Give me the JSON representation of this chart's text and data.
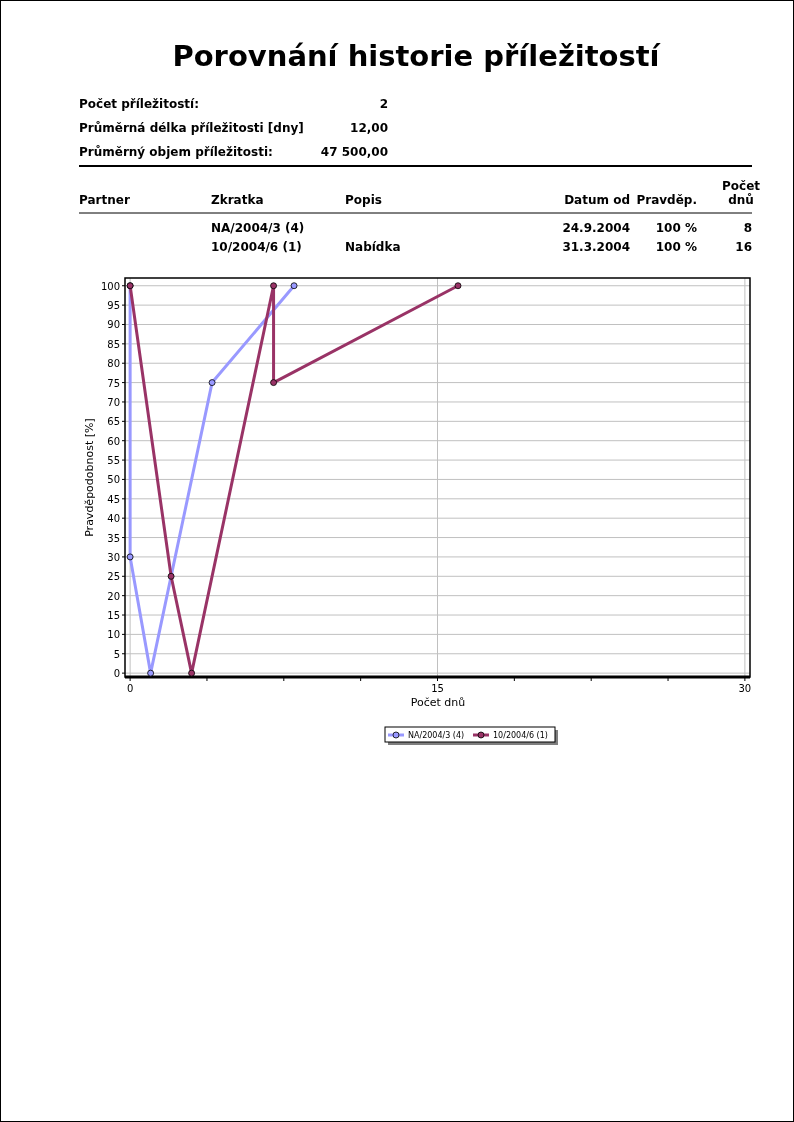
{
  "chart_data": {
    "type": "line",
    "title": "Porovnání historie příležitostí",
    "annotations": [
      "Počet příležitostí:",
      "2",
      "Průměrná délka příležitosti [dny]",
      "12,00",
      "Průměrný objem příležitosti:",
      "47 500,00",
      "Partner",
      "Zkratka",
      "Popis",
      "Datum od",
      "Pravděp.",
      "Počet dnů",
      "NA/2004/3 (4)",
      "24.9.2004",
      "100 %",
      "8",
      "10/2004/6 (1)",
      "Nabídka",
      "31.3.2004",
      "100 %",
      "16"
    ],
    "xlabel": "Počet dnů",
    "ylabel": "Pravděpodobnost [%]",
    "xlim": [
      -0.25,
      30.25
    ],
    "ylim": [
      -1,
      102
    ],
    "xticks": [
      0,
      {
        "value": 3.75,
        "label": null
      },
      {
        "value": 7.5,
        "label": null
      },
      {
        "value": 11.25,
        "label": null
      },
      15,
      {
        "value": 18.75,
        "label": null
      },
      {
        "value": 22.5,
        "label": null
      },
      {
        "value": 26.25,
        "label": null
      },
      30
    ],
    "yticks": [
      0,
      5,
      10,
      15,
      20,
      25,
      30,
      35,
      40,
      45,
      50,
      55,
      60,
      65,
      70,
      75,
      80,
      85,
      90,
      95,
      100
    ],
    "grid": true,
    "legend": "bottom",
    "marker": "circle",
    "line_style": "solid",
    "series": [
      {
        "name": "NA/2004/3 (4)",
        "color": "#9999ff",
        "x": [
          0,
          0,
          1,
          4,
          8
        ],
        "values": [
          100,
          30,
          0,
          75,
          100
        ]
      },
      {
        "name": "10/2004/6 (1)",
        "color": "#993366",
        "x": [
          0,
          2,
          3,
          7,
          7,
          16
        ],
        "values": [
          100,
          25,
          0,
          100,
          75,
          100
        ]
      }
    ]
  }
}
